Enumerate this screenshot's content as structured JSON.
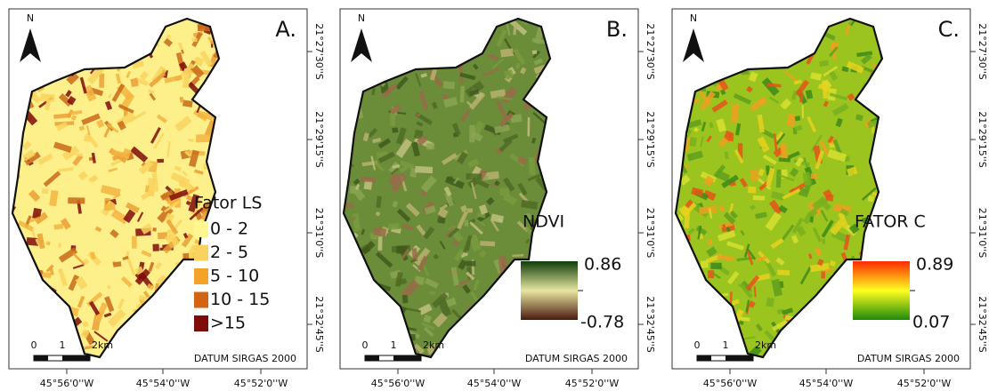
{
  "panels": [
    {
      "label": "A.",
      "north": "N",
      "legend": {
        "title": "Fator LS",
        "items": [
          {
            "label": "0 - 2",
            "color": "#fff68f"
          },
          {
            "label": "2 - 5",
            "color": "#f9d35e"
          },
          {
            "label": "5 - 10",
            "color": "#f3a22a"
          },
          {
            "label": "10 - 15",
            "color": "#d46313"
          },
          {
            "label": ">15",
            "color": "#7f0b0b"
          }
        ]
      },
      "scale": [
        "0",
        "1",
        "2km"
      ],
      "datum": "DATUM SIRGAS 2000",
      "x_tick_labels": [
        "45°56'0''W",
        "45°54'0''W",
        "45°52'0''W"
      ],
      "y_tick_labels": [
        "21°27'30''S",
        "21°29'15''S",
        "21°31'0''S",
        "21°32'45''S"
      ]
    },
    {
      "label": "B.",
      "north": "N",
      "legend": {
        "title": "NDVI",
        "max": 0.86,
        "min": -0.78,
        "colors": [
          "#0f3d0a",
          "#e8e6a0",
          "#4a1a10"
        ]
      },
      "scale": [
        "0",
        "1",
        "2km"
      ],
      "datum": "DATUM SIRGAS 2000",
      "x_tick_labels": [
        "45°56'0''W",
        "45°54'0''W",
        "45°52'0''W"
      ],
      "y_tick_labels": [
        "21°27'30''S",
        "21°29'15''S",
        "21°31'0''S",
        "21°32'45''S"
      ]
    },
    {
      "label": "C.",
      "north": "N",
      "legend": {
        "title": "FATOR C",
        "max": 0.89,
        "min": 0.07,
        "colors": [
          "#ff2a00",
          "#ffff20",
          "#1e8a0a"
        ]
      },
      "scale": [
        "0",
        "1",
        "2km"
      ],
      "datum": "DATUM SIRGAS 2000",
      "x_tick_labels": [
        "45°56'0''W",
        "45°54'0''W",
        "45°52'0''W"
      ],
      "y_tick_labels": [
        "21°27'30''S",
        "21°29'15''S",
        "21°31'0''S",
        "21°32'45''S"
      ]
    }
  ]
}
